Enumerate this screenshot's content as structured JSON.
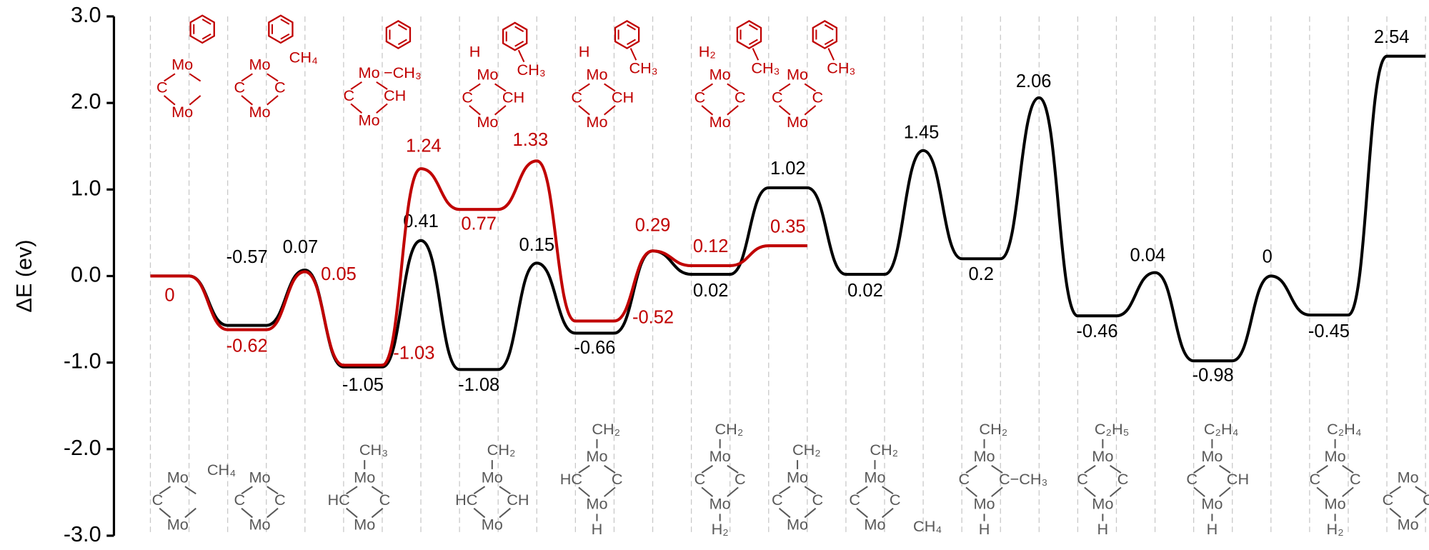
{
  "chart_data": {
    "type": "line",
    "ylabel": "ΔE (ev)",
    "ylim": [
      -3,
      3
    ],
    "yticks": [
      {
        "value": 3,
        "label": "3.0"
      },
      {
        "value": 2,
        "label": "2.0"
      },
      {
        "value": 1,
        "label": "1.0"
      },
      {
        "value": 0,
        "label": "0.0"
      },
      {
        "value": -1,
        "label": "-1.0"
      },
      {
        "value": -2,
        "label": "-2.0"
      },
      {
        "value": -3,
        "label": "-3.0"
      }
    ],
    "series": [
      {
        "color": "#000000",
        "values": [
          0,
          -0.57,
          0.07,
          -1.05,
          0.41,
          -1.08,
          0.15,
          -0.66,
          0.29,
          0.02,
          1.02,
          0.02,
          1.45,
          0.2,
          2.06,
          -0.46,
          0.04,
          -0.98,
          0,
          -0.45,
          2.54
        ],
        "value_labels": [
          null,
          "-0.57",
          "0.07",
          "-1.05",
          "0.41",
          "-1.08",
          "0.15",
          "-0.66",
          null,
          "0.02",
          "1.02",
          "0.02",
          "1.45",
          "0.2",
          "2.06",
          "-0.46",
          "0.04",
          "-0.98",
          "0",
          "-0.45",
          "2.54"
        ]
      },
      {
        "color": "#c00000",
        "values": [
          0,
          -0.62,
          0.05,
          -1.03,
          1.24,
          0.77,
          1.33,
          -0.52,
          0.29,
          0.12,
          0.35
        ],
        "value_labels": [
          "0",
          "-0.62",
          "0.05",
          "-1.03",
          "1.24",
          "0.77",
          "1.33",
          "-0.52",
          "0.29",
          "0.12",
          "0.35"
        ]
      }
    ]
  },
  "structures_top": [
    {
      "metal": "Mo",
      "left": "C"
    },
    {
      "metal": "Mo",
      "left": "C",
      "right": "C",
      "side": "CH₄"
    },
    {
      "metal": "Mo",
      "left": "C",
      "right": "CH",
      "mo_tail": "−CH₃"
    },
    {
      "metal": "Mo",
      "left": "C",
      "right": "CH",
      "top_left": "H",
      "methyl": "CH₃"
    },
    {
      "metal": "Mo",
      "left": "C",
      "right": "CH",
      "top_left": "H",
      "methyl": "CH₃"
    },
    {
      "metal": "Mo",
      "left": "C",
      "right": "C",
      "top_left": "H₂",
      "methyl": "CH₃"
    },
    {
      "metal": "Mo",
      "left": "C",
      "right": "C",
      "methyl": "CH₃"
    }
  ],
  "structures_bottom": [
    {
      "metal": "Mo",
      "left": "C",
      "side": "CH₄"
    },
    {
      "metal": "Mo",
      "left": "C",
      "right": "C"
    },
    {
      "metal": "Mo",
      "left": "HC",
      "right": "C",
      "above": "CH₃"
    },
    {
      "metal": "Mo",
      "left": "HC",
      "right": "CH",
      "above": "CH₂"
    },
    {
      "metal": "Mo",
      "left": "HC",
      "right": "C",
      "above": "CH₂",
      "below": "H"
    },
    {
      "metal": "Mo",
      "left": "C",
      "right": "C",
      "above": "CH₂",
      "below": "H₂"
    },
    {
      "metal": "Mo",
      "left": "C",
      "right": "C",
      "above": "CH₂"
    },
    {
      "metal": "Mo",
      "left": "C",
      "right": "C",
      "above": "CH₂",
      "corner": "CH₄"
    },
    {
      "metal": "Mo",
      "left": "C",
      "right": "C−CH₃",
      "above": "CH₂",
      "below": "H"
    },
    {
      "metal": "Mo",
      "left": "C",
      "right": "C",
      "above": "C₂H₅",
      "below": "H"
    },
    {
      "metal": "Mo",
      "left": "C",
      "right": "CH",
      "above": "C₂H₄",
      "below": "H"
    },
    {
      "metal": "Mo",
      "left": "C",
      "right": "C",
      "above": "C₂H₄",
      "below": "H₂"
    },
    {
      "metal": "Mo",
      "left": "C",
      "right": "C"
    }
  ]
}
